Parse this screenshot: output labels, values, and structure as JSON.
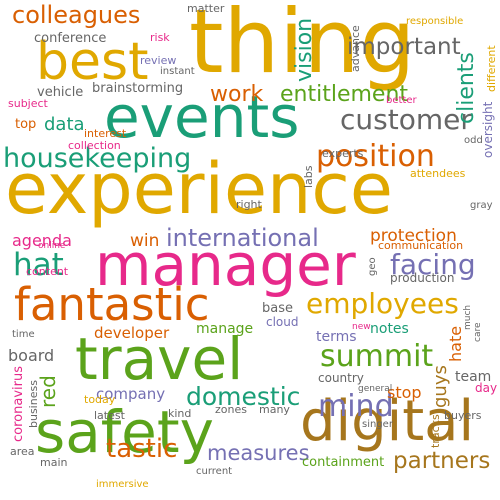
{
  "palette": {
    "background": "#ffffff",
    "gold": "#E0A800",
    "green": "#5BA31B",
    "teal": "#1A9E77",
    "pink": "#E7298A",
    "orange": "#D95F02",
    "purple": "#7570B3",
    "brown": "#A6761D",
    "gray": "#666666"
  },
  "words": [
    {
      "text": "thing",
      "color": "gold"
    },
    {
      "text": "experience",
      "color": "gold"
    },
    {
      "text": "manager",
      "color": "pink"
    },
    {
      "text": "travel",
      "color": "green"
    },
    {
      "text": "safety",
      "color": "green"
    },
    {
      "text": "events",
      "color": "teal"
    },
    {
      "text": "digital",
      "color": "brown"
    },
    {
      "text": "best",
      "color": "gold"
    },
    {
      "text": "fantastic",
      "color": "orange"
    },
    {
      "text": "housekeeping",
      "color": "teal"
    },
    {
      "text": "position",
      "color": "orange"
    },
    {
      "text": "employees",
      "color": "gold"
    },
    {
      "text": "summit",
      "color": "green"
    },
    {
      "text": "customer",
      "color": "gray"
    },
    {
      "text": "colleagues",
      "color": "orange"
    },
    {
      "text": "mind",
      "color": "purple"
    },
    {
      "text": "international",
      "color": "purple"
    },
    {
      "text": "hat",
      "color": "teal"
    },
    {
      "text": "domestic",
      "color": "teal"
    },
    {
      "text": "facing",
      "color": "purple"
    },
    {
      "text": "tastic",
      "color": "orange"
    },
    {
      "text": "important",
      "color": "gray"
    },
    {
      "text": "entitlement",
      "color": "green"
    },
    {
      "text": "partners",
      "color": "brown"
    },
    {
      "text": "measures",
      "color": "purple"
    },
    {
      "text": "vision",
      "color": "teal"
    },
    {
      "text": "clients",
      "color": "teal"
    },
    {
      "text": "work",
      "color": "orange"
    },
    {
      "text": "data",
      "color": "teal"
    },
    {
      "text": "red",
      "color": "green"
    },
    {
      "text": "protection",
      "color": "orange"
    },
    {
      "text": "win",
      "color": "orange"
    },
    {
      "text": "agenda",
      "color": "pink"
    },
    {
      "text": "manage",
      "color": "green"
    },
    {
      "text": "developer",
      "color": "orange"
    },
    {
      "text": "company",
      "color": "purple"
    },
    {
      "text": "board",
      "color": "gray"
    },
    {
      "text": "stop",
      "color": "orange"
    },
    {
      "text": "guys",
      "color": "brown"
    },
    {
      "text": "team",
      "color": "gray"
    },
    {
      "text": "hate",
      "color": "orange"
    },
    {
      "text": "notes",
      "color": "teal"
    },
    {
      "text": "terms",
      "color": "purple"
    },
    {
      "text": "conference",
      "color": "gray"
    },
    {
      "text": "vehicle",
      "color": "gray"
    },
    {
      "text": "brainstorming",
      "color": "gray"
    },
    {
      "text": "top",
      "color": "orange"
    },
    {
      "text": "coronavirus",
      "color": "pink"
    },
    {
      "text": "base",
      "color": "gray"
    },
    {
      "text": "cloud",
      "color": "purple"
    },
    {
      "text": "country",
      "color": "gray"
    },
    {
      "text": "containment",
      "color": "green"
    },
    {
      "text": "day",
      "color": "pink"
    },
    {
      "text": "oversight",
      "color": "purple"
    },
    {
      "text": "different",
      "color": "gold"
    },
    {
      "text": "production",
      "color": "gray"
    },
    {
      "text": "communication",
      "color": "orange"
    },
    {
      "text": "content",
      "color": "pink"
    },
    {
      "text": "collection",
      "color": "pink"
    },
    {
      "text": "interest",
      "color": "orange"
    },
    {
      "text": "experts",
      "color": "gray"
    },
    {
      "text": "attendees",
      "color": "gold"
    },
    {
      "text": "right",
      "color": "gray"
    },
    {
      "text": "matter",
      "color": "gray"
    },
    {
      "text": "risk",
      "color": "pink"
    },
    {
      "text": "review",
      "color": "purple"
    },
    {
      "text": "instant",
      "color": "gray"
    },
    {
      "text": "advance",
      "color": "gray"
    },
    {
      "text": "responsible",
      "color": "gold"
    },
    {
      "text": "subject",
      "color": "pink"
    },
    {
      "text": "better",
      "color": "pink"
    },
    {
      "text": "labs",
      "color": "gray"
    },
    {
      "text": "odd",
      "color": "gray"
    },
    {
      "text": "gray",
      "color": "gray"
    },
    {
      "text": "online",
      "color": "pink"
    },
    {
      "text": "geo",
      "color": "gray"
    },
    {
      "text": "time",
      "color": "gray"
    },
    {
      "text": "new",
      "color": "pink"
    },
    {
      "text": "much",
      "color": "gray"
    },
    {
      "text": "care",
      "color": "gray"
    },
    {
      "text": "general",
      "color": "gray"
    },
    {
      "text": "singer",
      "color": "gray"
    },
    {
      "text": "tracks",
      "color": "brown"
    },
    {
      "text": "buyers",
      "color": "gray"
    },
    {
      "text": "zones",
      "color": "gray"
    },
    {
      "text": "many",
      "color": "gray"
    },
    {
      "text": "kind",
      "color": "gray"
    },
    {
      "text": "latest",
      "color": "gray"
    },
    {
      "text": "today",
      "color": "gold"
    },
    {
      "text": "business",
      "color": "gray"
    },
    {
      "text": "area",
      "color": "gray"
    },
    {
      "text": "main",
      "color": "gray"
    },
    {
      "text": "current",
      "color": "gray"
    },
    {
      "text": "immersive",
      "color": "gold"
    }
  ]
}
